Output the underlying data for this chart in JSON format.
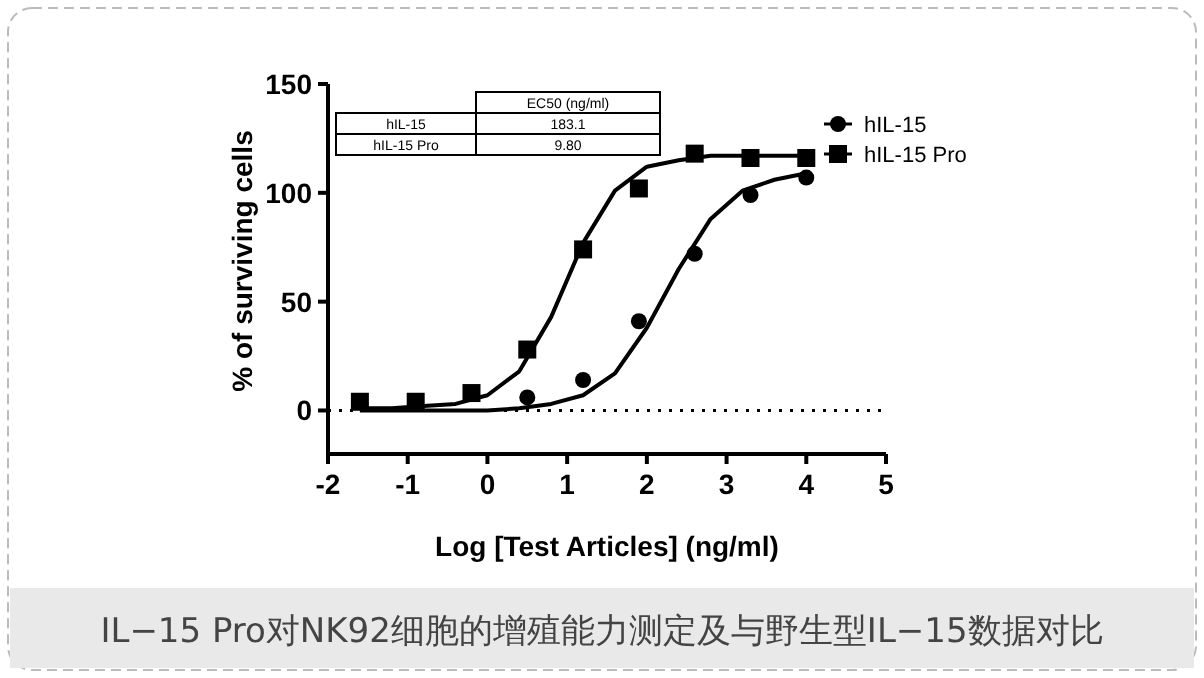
{
  "chart_data": {
    "type": "scatter",
    "xlabel": "Log [Test Articles] (ng/ml)",
    "ylabel": "% of surviving cells",
    "xlim": [
      -2,
      5
    ],
    "xticks": [
      -2,
      -1,
      0,
      1,
      2,
      3,
      4,
      5
    ],
    "ylim": [
      -20,
      150
    ],
    "yticks": [
      0,
      50,
      100,
      150
    ],
    "x": [
      -1.6,
      -0.9,
      -0.2,
      0.5,
      1.2,
      1.9,
      2.6,
      3.3,
      4.0
    ],
    "series": [
      {
        "name": "hIL-15",
        "marker": "circle",
        "color": "#000000",
        "values": [
          null,
          null,
          null,
          6,
          14,
          41,
          72,
          99,
          107
        ]
      },
      {
        "name": "hIL-15 Pro",
        "marker": "square",
        "color": "#000000",
        "values": [
          4,
          4,
          8,
          28,
          74,
          102,
          118,
          116,
          116
        ]
      },
      {
        "type": "line",
        "color": "#000000",
        "x": [
          -1.6,
          -0.8,
          0,
          0.4,
          0.8,
          1.2,
          1.6,
          2.0,
          2.4,
          2.8,
          3.2,
          3.6,
          4.0
        ],
        "values": [
          0,
          0,
          0,
          1,
          3,
          7,
          17,
          38,
          65,
          88,
          101,
          106,
          109
        ]
      },
      {
        "type": "line",
        "color": "#000000",
        "x": [
          -1.6,
          -1.2,
          -0.8,
          -0.4,
          0,
          0.4,
          0.8,
          1.2,
          1.6,
          2.0,
          2.4,
          2.8,
          3.2,
          3.6,
          4.0
        ],
        "values": [
          1,
          1,
          2,
          3,
          7,
          18,
          43,
          77,
          101,
          112,
          115,
          117,
          117,
          117,
          117
        ]
      }
    ],
    "ref_lines": [
      {
        "axis": "y",
        "value": 0,
        "line_style": "dotted"
      }
    ],
    "legend": "top right",
    "annotations": [
      "EC50 (ng/ml)",
      "hIL-15",
      "183.1",
      "hIL-15 Pro",
      "9.80",
      "IL−15 Pro对NK92细胞的增殖能力测定及与野生型IL−15数据对比"
    ]
  }
}
